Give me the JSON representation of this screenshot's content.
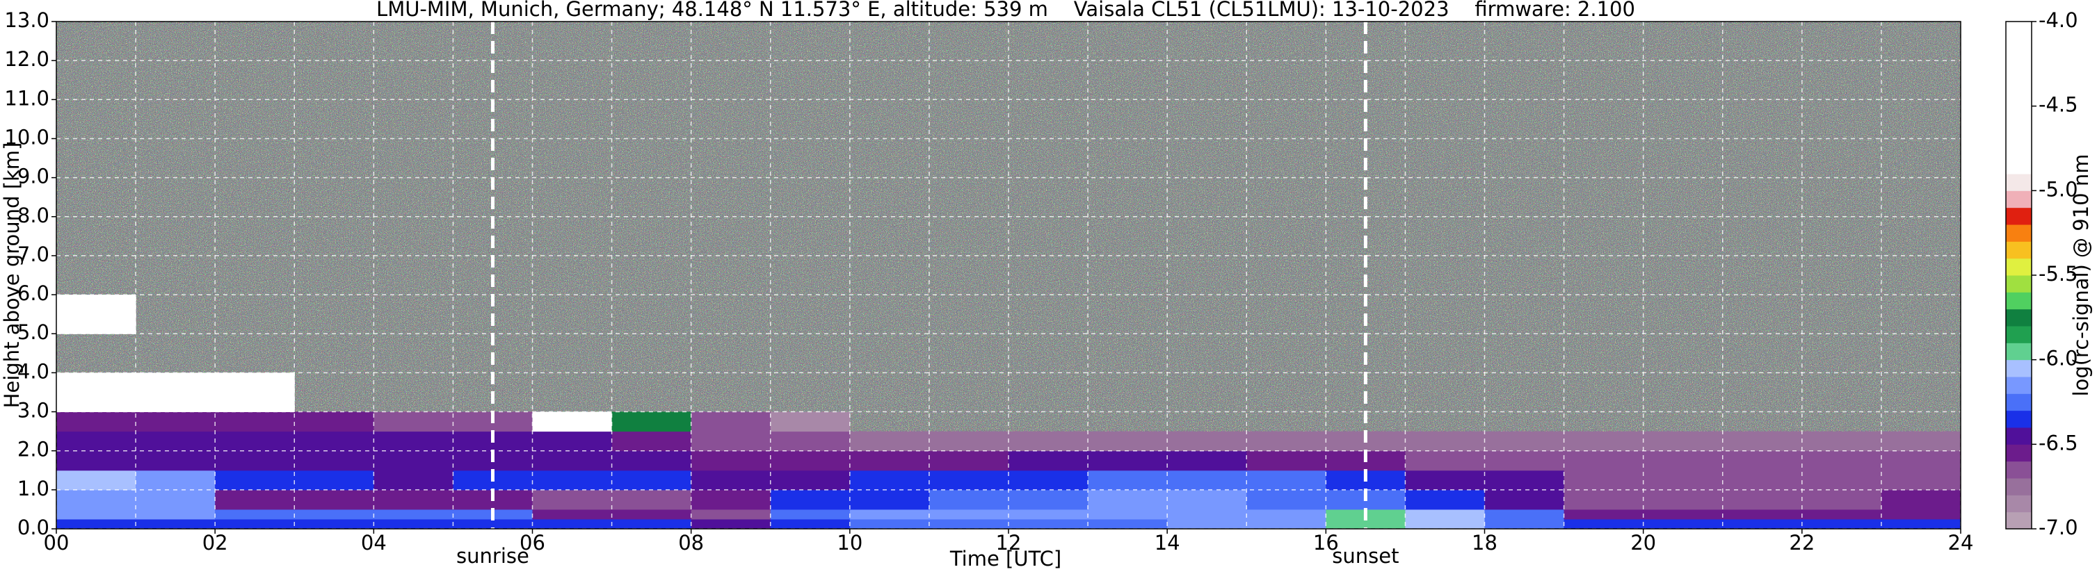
{
  "chart_data": {
    "type": "heatmap",
    "title": "LMU-MIM, Munich, Germany; 48.148° N 11.573° E, altitude: 539 m    Vaisala CL51 (CL51LMU): 13-10-2023    firmware: 2.100",
    "xlabel": "Time [UTC]",
    "ylabel": "Height above ground [km]",
    "colorbar_label": "log(rc-signal) @ 910 nm",
    "xlim": [
      0,
      24
    ],
    "ylim": [
      0,
      13
    ],
    "zlim": [
      -7,
      -4
    ],
    "xticks": [
      {
        "value": 0,
        "label": "00"
      },
      {
        "value": 2,
        "label": "02"
      },
      {
        "value": 4,
        "label": "04"
      },
      {
        "value": 6,
        "label": "06"
      },
      {
        "value": 8,
        "label": "08"
      },
      {
        "value": 10,
        "label": "10"
      },
      {
        "value": 12,
        "label": "12"
      },
      14,
      16,
      18,
      20,
      22,
      24
    ],
    "xminorticks": [
      1,
      3,
      5,
      7,
      9,
      11,
      13,
      15,
      17,
      19,
      21,
      23
    ],
    "yticks": [
      {
        "value": 0,
        "label": "0.0"
      },
      {
        "value": 1,
        "label": "1.0"
      },
      {
        "value": 2,
        "label": "2.0"
      },
      {
        "value": 3,
        "label": "3.0"
      },
      {
        "value": 4,
        "label": "4.0"
      },
      {
        "value": 5,
        "label": "5.0"
      },
      {
        "value": 6,
        "label": "6.0"
      },
      {
        "value": 7,
        "label": "7.0"
      },
      {
        "value": 8,
        "label": "8.0"
      },
      {
        "value": 9,
        "label": "9.0"
      },
      {
        "value": 10,
        "label": "10.0"
      },
      {
        "value": 11,
        "label": "11.0"
      },
      {
        "value": 12,
        "label": "12.0"
      },
      {
        "value": 13,
        "label": "13.0"
      }
    ],
    "zticks": [
      {
        "value": -4,
        "label": "-4.0"
      },
      -4.5,
      {
        "value": -5,
        "label": "-5.0"
      },
      -5.5,
      {
        "value": -6,
        "label": "-6.0"
      },
      -6.5,
      {
        "value": -7,
        "label": "-7.0"
      }
    ],
    "grid": true,
    "colormap": [
      "#b8a0b4",
      "#a888a8",
      "#98709c",
      "#8a5096",
      "#6c1c8c",
      "#50109a",
      "#1a30e8",
      "#4a70f8",
      "#7898ff",
      "#a8c0ff",
      "#60d090",
      "#20a050",
      "#108040",
      "#50d060",
      "#a0e040",
      "#e0f040",
      "#f8c020",
      "#f88010",
      "#e02010",
      "#f0b0b8",
      "#f4e8e8",
      "#ffffff",
      "#ffffff",
      "#ffffff",
      "#ffffff",
      "#ffffff",
      "#ffffff",
      "#ffffff",
      "#ffffff",
      "#ffffff"
    ],
    "xbins": [
      0,
      1,
      2,
      3,
      4,
      5,
      6,
      7,
      8,
      9,
      10,
      11,
      12,
      13,
      14,
      15,
      16,
      17,
      18,
      19,
      20,
      21,
      22,
      23,
      24
    ],
    "ybins": [
      0,
      0.25,
      0.5,
      1,
      1.5,
      2,
      2.5,
      3,
      4,
      5,
      6,
      7,
      8,
      9,
      10,
      11,
      12,
      13
    ],
    "z": [
      [
        -6.4,
        -6.4,
        -6.4,
        -6.4,
        -6.4,
        -6.4,
        -6.4,
        -6.4,
        -6.5,
        -6.35,
        -6.3,
        -6.3,
        -6.25,
        -6.25,
        -6.2,
        -6.2,
        -6.0,
        -6.1,
        -6.3,
        -6.4,
        -6.4,
        -6.4,
        -6.4,
        -6.4
      ],
      [
        -6.2,
        -6.2,
        -6.3,
        -6.25,
        -6.25,
        -6.3,
        -6.6,
        -6.6,
        -6.65,
        -6.3,
        -6.2,
        -6.15,
        -6.15,
        -6.15,
        -6.15,
        -6.2,
        -6.0,
        -6.1,
        -6.3,
        -6.55,
        -6.6,
        -6.6,
        -6.6,
        -6.6
      ],
      [
        -6.15,
        -6.2,
        -6.55,
        -6.6,
        -6.6,
        -6.6,
        -6.65,
        -6.65,
        -6.6,
        -6.4,
        -6.35,
        -6.3,
        -6.25,
        -6.2,
        -6.2,
        -6.25,
        -6.3,
        -6.35,
        -6.45,
        -6.65,
        -6.65,
        -6.65,
        -6.65,
        -6.6
      ],
      [
        -6.1,
        -6.2,
        -6.4,
        -6.4,
        -6.45,
        -6.4,
        -6.4,
        -6.4,
        -6.45,
        -6.45,
        -6.4,
        -6.4,
        -6.35,
        -6.3,
        -6.3,
        -6.3,
        -6.35,
        -6.45,
        -6.5,
        -6.65,
        -6.65,
        -6.65,
        -6.65,
        -6.65
      ],
      [
        -6.45,
        -6.45,
        -6.45,
        -6.45,
        -6.45,
        -6.45,
        -6.45,
        -6.5,
        -6.55,
        -6.6,
        -6.6,
        -6.55,
        -6.45,
        -6.45,
        -6.5,
        -6.55,
        -6.6,
        -6.65,
        -6.7,
        -6.7,
        -6.7,
        -6.7,
        -6.7,
        -6.7
      ],
      [
        -6.5,
        -6.5,
        -6.5,
        -6.5,
        -6.5,
        -6.5,
        -6.5,
        -6.55,
        -6.65,
        -6.7,
        -6.75,
        -6.75,
        -6.8,
        -6.8,
        -6.8,
        -6.8,
        -6.8,
        -6.8,
        -6.8,
        -6.8,
        -6.8,
        -6.8,
        -6.8,
        -6.8
      ],
      [
        -6.6,
        -6.6,
        -6.6,
        -6.6,
        -6.65,
        -6.65,
        -4.5,
        -5.8,
        -6.7,
        -6.85,
        null,
        null,
        null,
        null,
        null,
        null,
        null,
        null,
        null,
        null,
        null,
        null,
        null,
        null
      ],
      [
        -4.5,
        -4.5,
        -4.6,
        null,
        null,
        null,
        null,
        null,
        null,
        null,
        null,
        null,
        null,
        null,
        null,
        null,
        null,
        null,
        null,
        null,
        null,
        null,
        null,
        null
      ],
      [
        null,
        null,
        null,
        null,
        null,
        null,
        null,
        null,
        null,
        null,
        null,
        null,
        null,
        null,
        null,
        null,
        null,
        null,
        null,
        null,
        null,
        null,
        null,
        null
      ],
      [
        -4.5,
        null,
        null,
        null,
        null,
        null,
        null,
        null,
        null,
        null,
        null,
        null,
        null,
        null,
        null,
        null,
        null,
        null,
        null,
        null,
        null,
        null,
        null,
        null
      ],
      [
        null,
        null,
        null,
        null,
        null,
        null,
        null,
        null,
        null,
        null,
        null,
        null,
        null,
        null,
        null,
        null,
        null,
        null,
        null,
        null,
        null,
        null,
        null,
        null
      ],
      [
        null,
        null,
        null,
        null,
        null,
        null,
        null,
        null,
        null,
        null,
        null,
        null,
        null,
        null,
        null,
        null,
        null,
        null,
        null,
        null,
        null,
        null,
        null,
        null
      ],
      [
        null,
        null,
        null,
        null,
        null,
        null,
        null,
        null,
        null,
        null,
        null,
        null,
        null,
        null,
        null,
        null,
        null,
        null,
        null,
        null,
        null,
        null,
        null,
        null
      ],
      [
        null,
        null,
        null,
        null,
        null,
        null,
        null,
        null,
        null,
        null,
        null,
        null,
        null,
        null,
        null,
        null,
        null,
        null,
        null,
        null,
        null,
        null,
        null,
        null
      ],
      [
        null,
        null,
        null,
        null,
        null,
        null,
        null,
        null,
        null,
        null,
        null,
        null,
        null,
        null,
        null,
        null,
        null,
        null,
        null,
        null,
        null,
        null,
        null,
        null
      ],
      [
        null,
        null,
        null,
        null,
        null,
        null,
        null,
        null,
        null,
        null,
        null,
        null,
        null,
        null,
        null,
        null,
        null,
        null,
        null,
        null,
        null,
        null,
        null,
        null
      ],
      [
        null,
        null,
        null,
        null,
        null,
        null,
        null,
        null,
        null,
        null,
        null,
        null,
        null,
        null,
        null,
        null,
        null,
        null,
        null,
        null,
        null,
        null,
        null,
        null
      ]
    ],
    "annotations": [
      {
        "text": "sunrise",
        "x": 5.5
      },
      {
        "text": "sunset",
        "x": 16.5
      }
    ]
  }
}
